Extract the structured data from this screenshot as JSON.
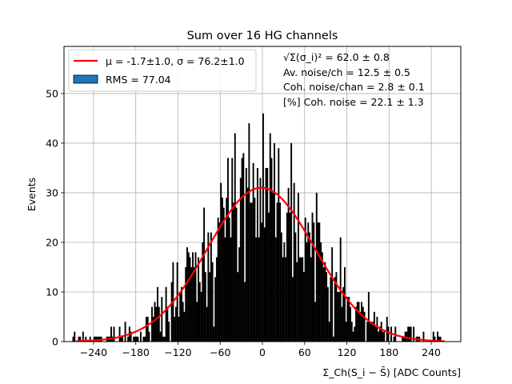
{
  "chart_data": {
    "type": "bar",
    "title": "Sum over 16 HG channels",
    "xlabel": "Σ_Ch(S_i − S̄) [ADC Counts]",
    "ylabel": "Events",
    "xlim": [
      -282,
      282
    ],
    "ylim": [
      0,
      59.5
    ],
    "xticks": [
      -240,
      -180,
      -120,
      -60,
      0,
      60,
      120,
      180,
      240
    ],
    "yticks": [
      0,
      10,
      20,
      30,
      40,
      50
    ],
    "grid": true,
    "legend_position": "top-left",
    "legend": [
      {
        "label": "μ = -1.7±1.0, σ = 76.2±1.0",
        "kind": "line",
        "color": "#ff0000"
      },
      {
        "label": "RMS = 77.04",
        "kind": "patch",
        "color": "#1f77b4"
      }
    ],
    "annotations": [
      "√Σ(σ_i)² = 62.0 ± 0.8",
      "Av. noise/ch = 12.5 ± 0.5",
      "Coh. noise/chan = 2.8 ± 0.1",
      "[%] Coh. noise = 22.1 ± 1.3"
    ],
    "histogram": {
      "bin_range": [
        -270,
        260
      ],
      "bin_width": 2,
      "color": "#000000",
      "note": "Bin counts are approximately Gaussian with the fitted parameters; tallest bins near 0 reach about 46 events."
    },
    "fit": {
      "type": "gaussian",
      "mu": -1.7,
      "sigma": 76.2,
      "amplitude": 31.0,
      "x_range": [
        -265,
        260
      ],
      "color": "#ff0000"
    },
    "peak_samples": [
      {
        "x": -20,
        "y": 44
      },
      {
        "x": 0,
        "y": 46
      },
      {
        "x": 10,
        "y": 42
      },
      {
        "x": -40,
        "y": 42
      },
      {
        "x": 40,
        "y": 40
      }
    ]
  }
}
